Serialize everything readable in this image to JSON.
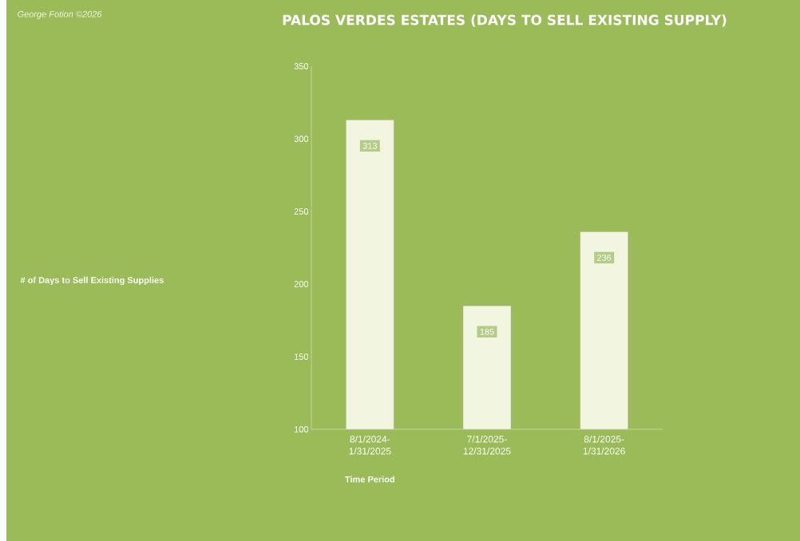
{
  "chart_data": {
    "type": "bar",
    "title": "PALOS VERDES ESTATES (DAYS TO SELL EXISTING SUPPLY)",
    "annotations": [
      "George Fotion ©2026",
      "# of Days to Sell Existing Supplies"
    ],
    "xlabel": "Time Period",
    "categories": [
      "8/1/2024-1/31/2025",
      "7/1/2025-12/31/2025",
      "8/1/2025-1/31/2026"
    ],
    "values": [
      313,
      185,
      236
    ],
    "color": "#f2f6e0",
    "ylim": [
      100,
      350
    ],
    "yticks": [
      100,
      150,
      200,
      250,
      300,
      350
    ],
    "data_labels": true
  }
}
